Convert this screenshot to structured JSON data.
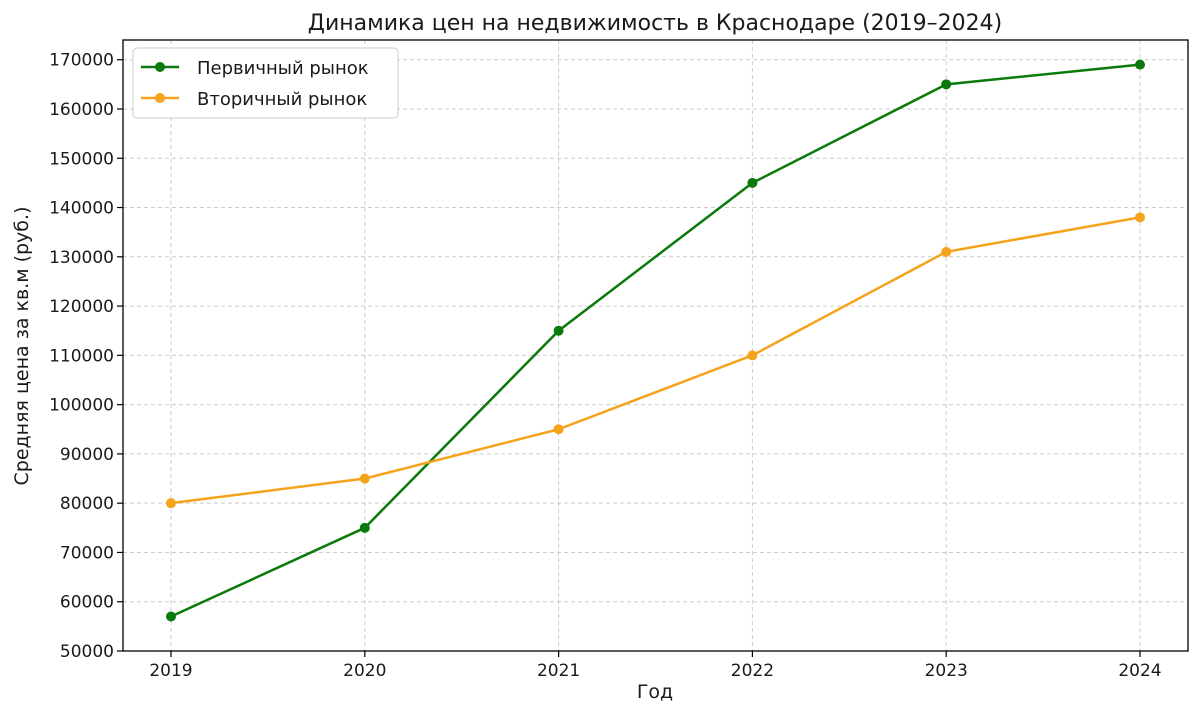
{
  "chart_data": {
    "type": "line",
    "title": "Динамика цен на недвижимость в Краснодаре (2019–2024)",
    "xlabel": "Год",
    "ylabel": "Средняя цена за кв.м (руб.)",
    "categories": [
      "2019",
      "2020",
      "2021",
      "2022",
      "2023",
      "2024"
    ],
    "y_ticks": [
      "50000",
      "60000",
      "70000",
      "80000",
      "90000",
      "100000",
      "110000",
      "120000",
      "130000",
      "140000",
      "150000",
      "160000",
      "170000"
    ],
    "ylim": [
      50000,
      174000
    ],
    "grid": true,
    "legend_position": "top-left",
    "series": [
      {
        "name": "Первичный рынок",
        "color": "#0a7a0a",
        "values": [
          57000,
          75000,
          115000,
          145000,
          165000,
          169000
        ]
      },
      {
        "name": "Вторичный рынок",
        "color": "#f5a31a",
        "values": [
          80000,
          85000,
          95000,
          110000,
          131000,
          138000
        ]
      }
    ]
  }
}
